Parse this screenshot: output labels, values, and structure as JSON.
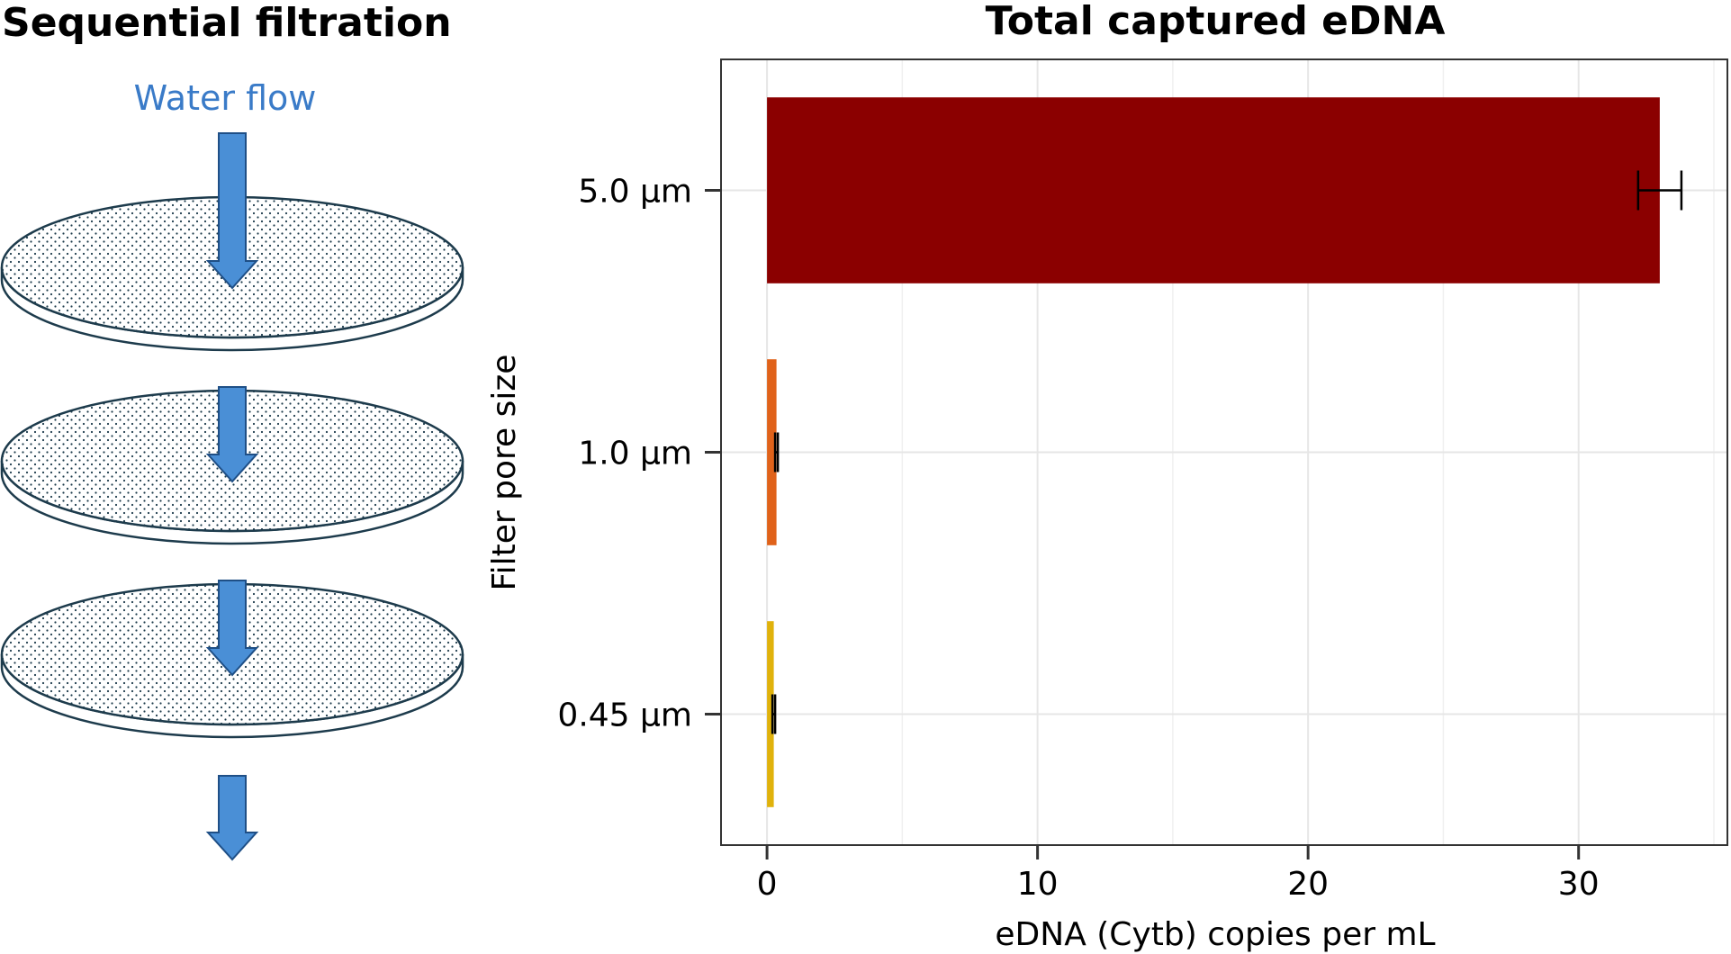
{
  "diagram": {
    "title": "Sequential filtration",
    "flow_label": "Water flow",
    "filter_count": 3,
    "arrow_color": "#4a8fd6",
    "label_color": "#3a7bc8"
  },
  "chart_data": {
    "type": "bar",
    "orientation": "horizontal",
    "title": "Total captured eDNA",
    "xlabel": "eDNA (Cytb) copies per mL",
    "ylabel": "Filter pore size",
    "categories": [
      "5.0 µm",
      "1.0 µm",
      "0.45 µm"
    ],
    "values": [
      33.0,
      0.35,
      0.25
    ],
    "error": [
      0.8,
      0.05,
      0.05
    ],
    "colors": [
      "#8b0000",
      "#e0621a",
      "#e0b20c"
    ],
    "xlim": [
      -1.7,
      35.5
    ],
    "xticks": [
      0,
      10,
      20,
      30
    ],
    "xtick_labels": [
      "0",
      "10",
      "20",
      "30"
    ],
    "grid": true
  }
}
